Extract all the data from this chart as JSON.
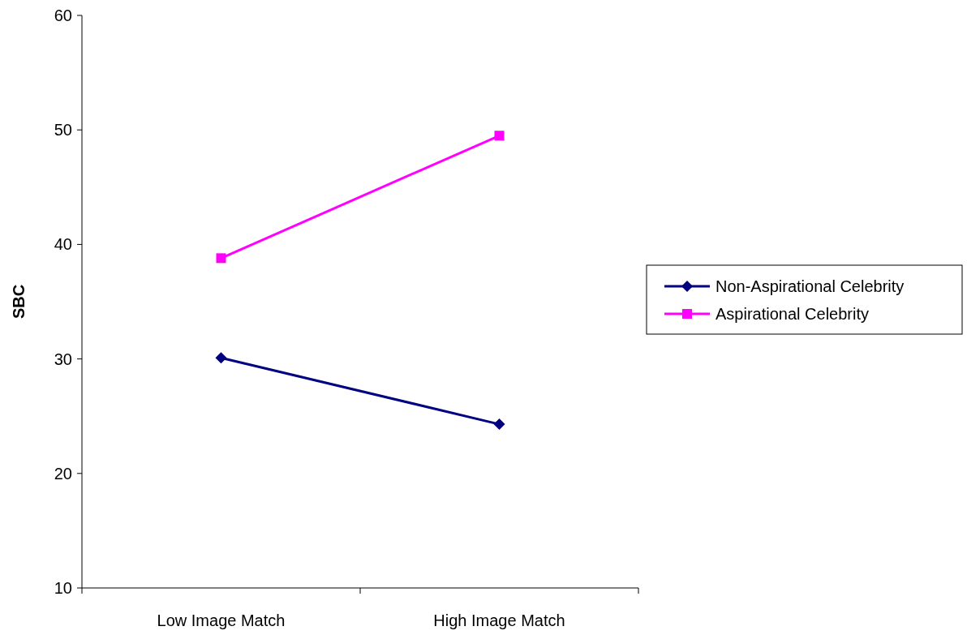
{
  "chart_data": {
    "type": "line",
    "ylabel": "SBC",
    "categories": [
      "Low Image Match",
      "High Image Match"
    ],
    "ylim": [
      10,
      60
    ],
    "yticks": [
      10,
      20,
      30,
      40,
      50,
      60
    ],
    "grid": false,
    "legend": "right",
    "series": [
      {
        "name": "Non-Aspirational Celebrity",
        "color": "#000080",
        "marker": "diamond",
        "values": [
          30.1,
          24.3
        ]
      },
      {
        "name": "Aspirational Celebrity",
        "color": "#ff00ff",
        "marker": "square",
        "values": [
          38.8,
          49.5
        ]
      }
    ]
  }
}
